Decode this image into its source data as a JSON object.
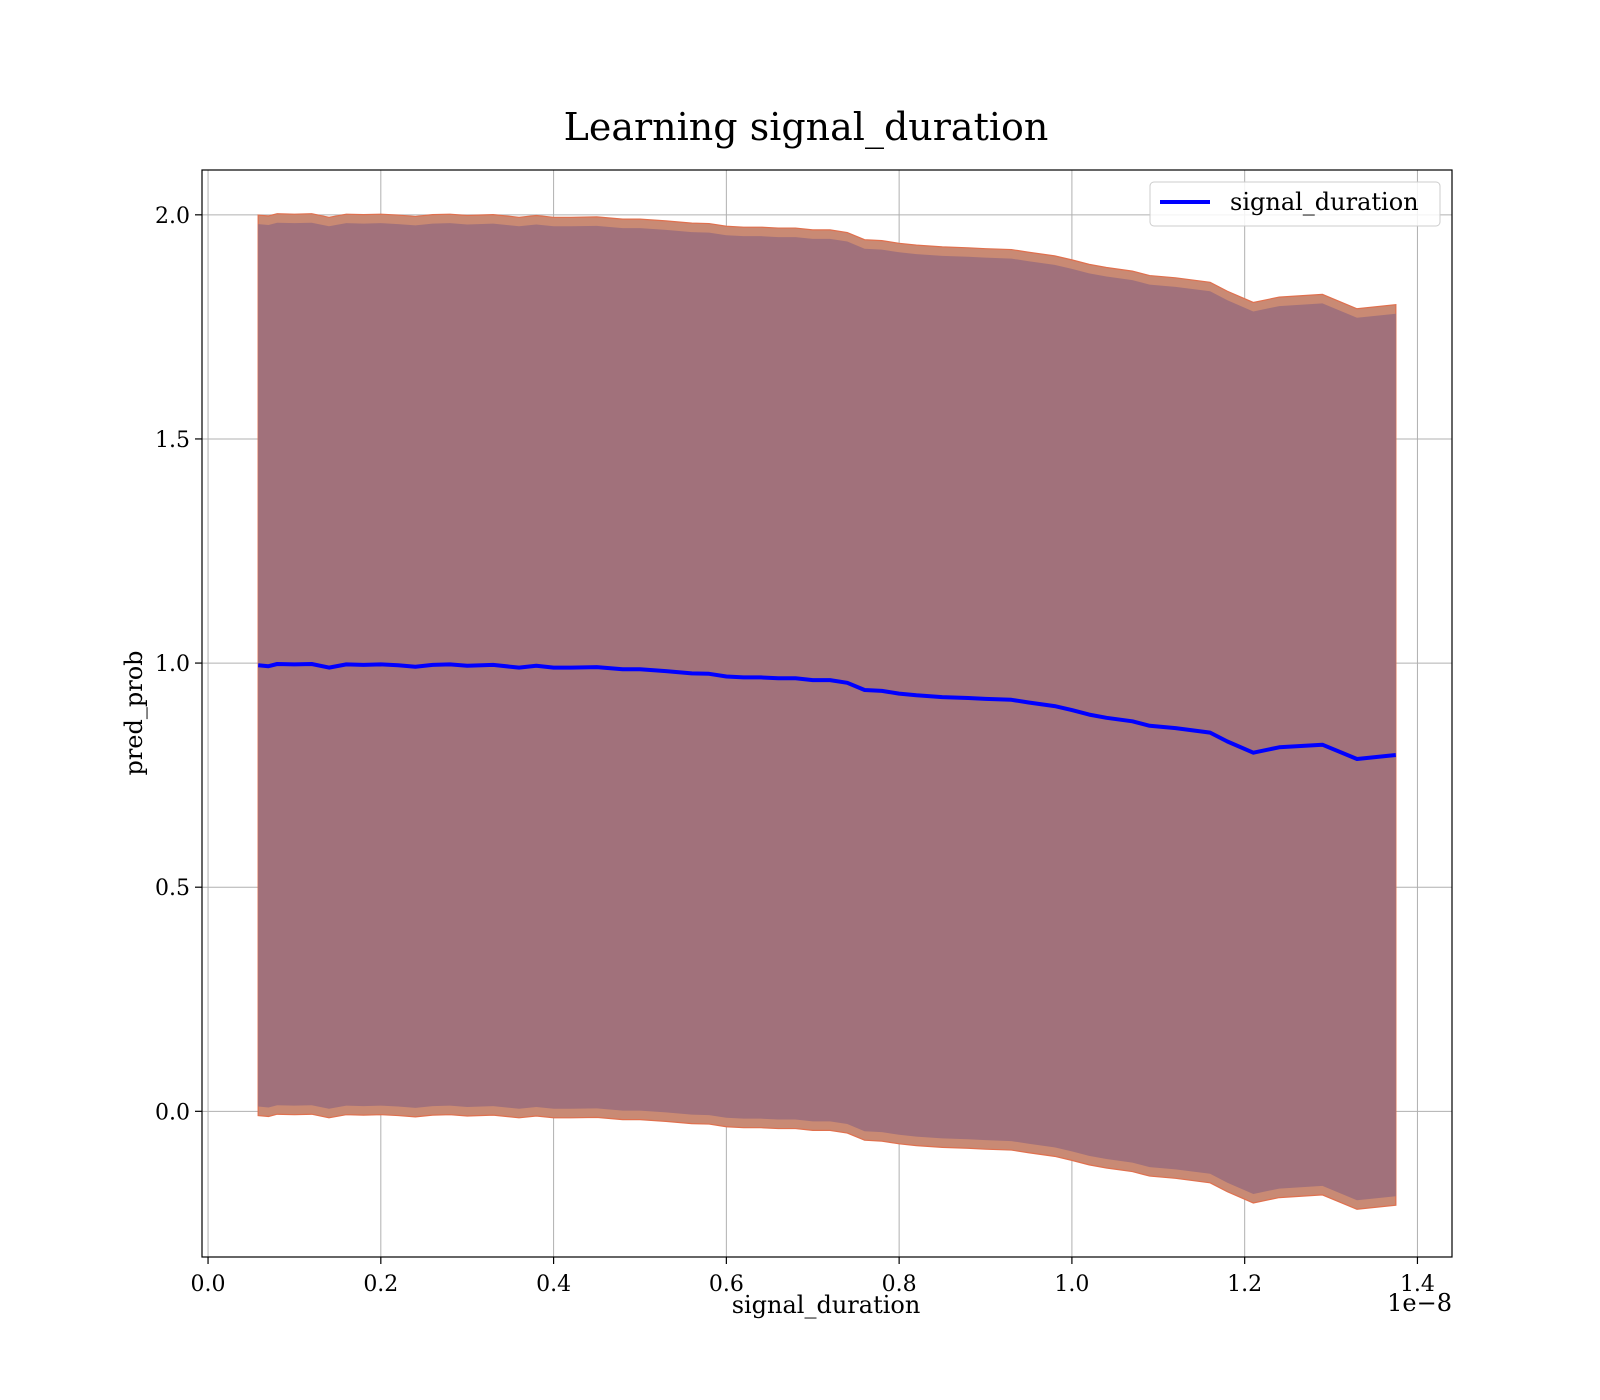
{
  "chart_data": {
    "type": "line",
    "title": "Learning signal_duration",
    "xlabel": "signal_duration",
    "ylabel": "pred_prob",
    "x_offset_label": "1e−8",
    "xlim": [
      -0.007,
      1.44
    ],
    "ylim": [
      -0.325,
      2.1
    ],
    "xticks": [
      0.0,
      0.2,
      0.4,
      0.6,
      0.8,
      1.0,
      1.2,
      1.4
    ],
    "xtick_labels": [
      "0.0",
      "0.2",
      "0.4",
      "0.6",
      "0.8",
      "1.0",
      "1.2",
      "1.4"
    ],
    "yticks": [
      0.0,
      0.5,
      1.0,
      1.5,
      2.0
    ],
    "ytick_labels": [
      "0.0",
      "0.5",
      "1.0",
      "1.5",
      "2.0"
    ],
    "grid": true,
    "legend_position": "top-right",
    "colors": {
      "line": "#0000ff",
      "band_inner": "#a1717b",
      "band_edge": "#c98a74",
      "band_outline": "#e0704e",
      "grid": "#b0b0b0"
    },
    "series": [
      {
        "name": "signal_duration",
        "x": [
          0.058,
          0.07,
          0.08,
          0.1,
          0.12,
          0.14,
          0.16,
          0.18,
          0.2,
          0.22,
          0.24,
          0.26,
          0.28,
          0.3,
          0.33,
          0.36,
          0.38,
          0.4,
          0.42,
          0.45,
          0.48,
          0.5,
          0.53,
          0.56,
          0.58,
          0.6,
          0.62,
          0.64,
          0.66,
          0.68,
          0.7,
          0.72,
          0.74,
          0.76,
          0.78,
          0.8,
          0.82,
          0.85,
          0.88,
          0.9,
          0.93,
          0.95,
          0.98,
          1.0,
          1.02,
          1.04,
          1.07,
          1.09,
          1.12,
          1.16,
          1.18,
          1.21,
          1.24,
          1.29,
          1.33,
          1.375
        ],
        "y": [
          0.995,
          0.993,
          0.998,
          0.997,
          0.998,
          0.99,
          0.997,
          0.996,
          0.997,
          0.995,
          0.992,
          0.996,
          0.997,
          0.994,
          0.996,
          0.99,
          0.994,
          0.99,
          0.99,
          0.991,
          0.986,
          0.986,
          0.982,
          0.977,
          0.976,
          0.97,
          0.968,
          0.968,
          0.966,
          0.966,
          0.962,
          0.962,
          0.956,
          0.94,
          0.938,
          0.932,
          0.928,
          0.924,
          0.922,
          0.92,
          0.918,
          0.912,
          0.904,
          0.895,
          0.885,
          0.878,
          0.87,
          0.86,
          0.855,
          0.845,
          0.825,
          0.8,
          0.812,
          0.818,
          0.786,
          0.795
        ],
        "band_halfwidth": 1.0
      }
    ]
  }
}
